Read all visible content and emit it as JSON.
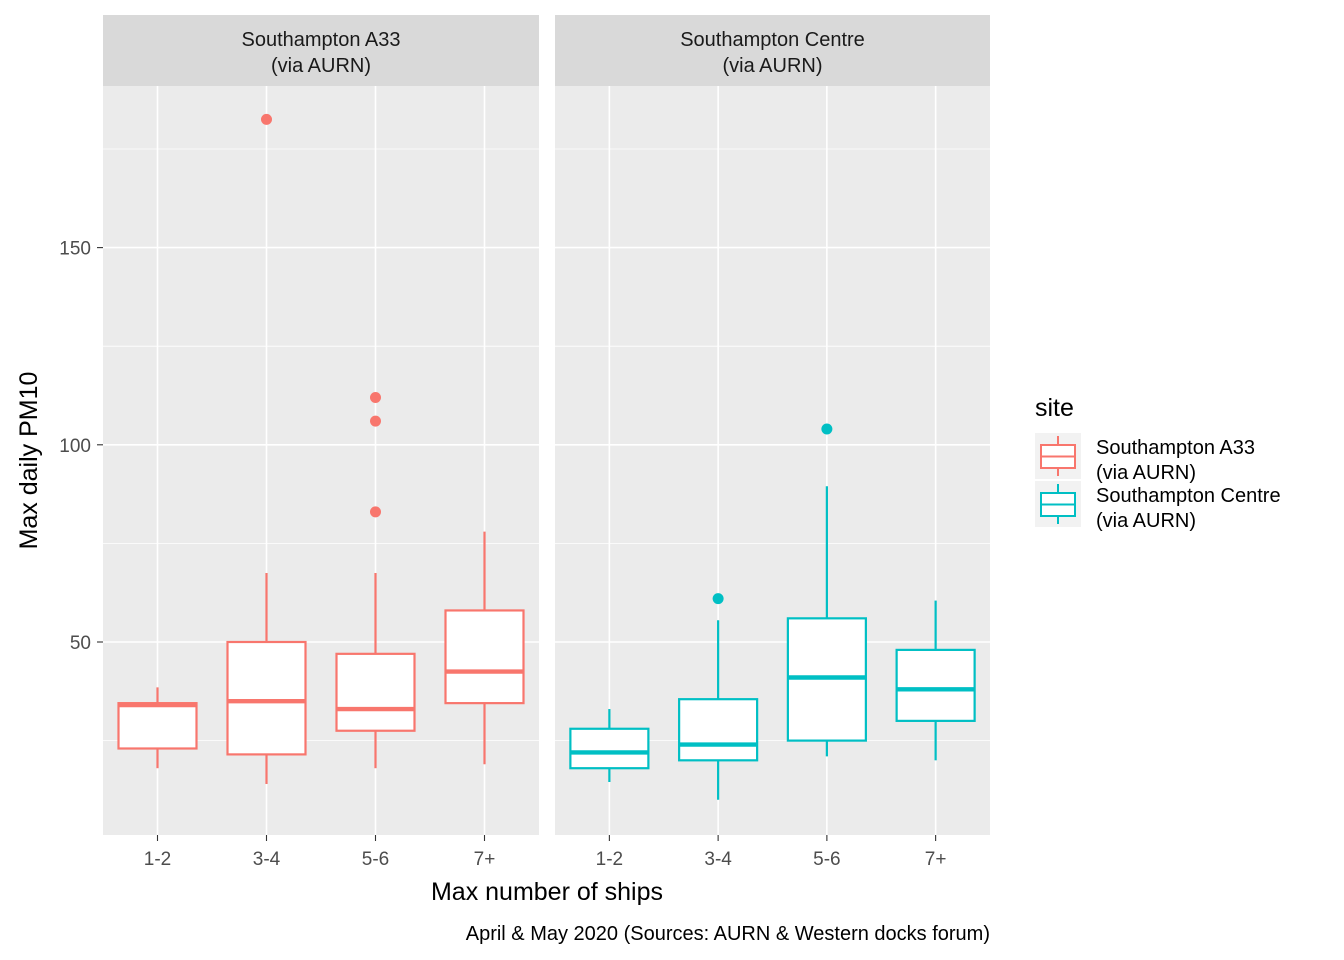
{
  "chart_data": {
    "type": "boxplot",
    "facet_variable": "site",
    "panels": [
      {
        "strip_label": [
          "Southampton A33",
          "(via AURN)"
        ],
        "color": "#F8766D",
        "boxes": [
          {
            "category": "1-2",
            "lower_whisker": 18,
            "q1": 23,
            "median": 34,
            "q3": 34.5,
            "upper_whisker": 38.5,
            "outliers": []
          },
          {
            "category": "3-4",
            "lower_whisker": 14,
            "q1": 21.5,
            "median": 35,
            "q3": 50,
            "upper_whisker": 67.5,
            "outliers": [
              182.5
            ]
          },
          {
            "category": "5-6",
            "lower_whisker": 18,
            "q1": 27.5,
            "median": 33,
            "q3": 47,
            "upper_whisker": 67.5,
            "outliers": [
              83,
              106,
              112
            ]
          },
          {
            "category": "7+",
            "lower_whisker": 19,
            "q1": 34.5,
            "median": 42.5,
            "q3": 58,
            "upper_whisker": 78,
            "outliers": []
          }
        ]
      },
      {
        "strip_label": [
          "Southampton Centre",
          "(via AURN)"
        ],
        "color": "#00BFC4",
        "boxes": [
          {
            "category": "1-2",
            "lower_whisker": 14.5,
            "q1": 18,
            "median": 22,
            "q3": 28,
            "upper_whisker": 33,
            "outliers": []
          },
          {
            "category": "3-4",
            "lower_whisker": 10,
            "q1": 20,
            "median": 24,
            "q3": 35.5,
            "upper_whisker": 55.5,
            "outliers": [
              61
            ]
          },
          {
            "category": "5-6",
            "lower_whisker": 21,
            "q1": 25,
            "median": 41,
            "q3": 56,
            "upper_whisker": 89.5,
            "outliers": [
              104
            ]
          },
          {
            "category": "7+",
            "lower_whisker": 20,
            "q1": 30,
            "median": 38,
            "q3": 48,
            "upper_whisker": 60.5,
            "outliers": []
          }
        ]
      }
    ],
    "categories": [
      "1-2",
      "3-4",
      "5-6",
      "7+"
    ],
    "y_ticks": [
      50,
      100,
      150
    ],
    "ylim": [
      0,
      190
    ],
    "xlabel": "Max number of ships",
    "ylabel": "Max daily PM10",
    "caption": "April & May 2020 (Sources: AURN & Western docks forum)",
    "legend": {
      "title": "site",
      "placement": "right",
      "entries": [
        {
          "label": [
            "Southampton A33",
            "(via AURN)"
          ],
          "color": "#F8766D"
        },
        {
          "label": [
            "Southampton Centre",
            "(via AURN)"
          ],
          "color": "#00BFC4"
        }
      ]
    },
    "grid": true
  }
}
